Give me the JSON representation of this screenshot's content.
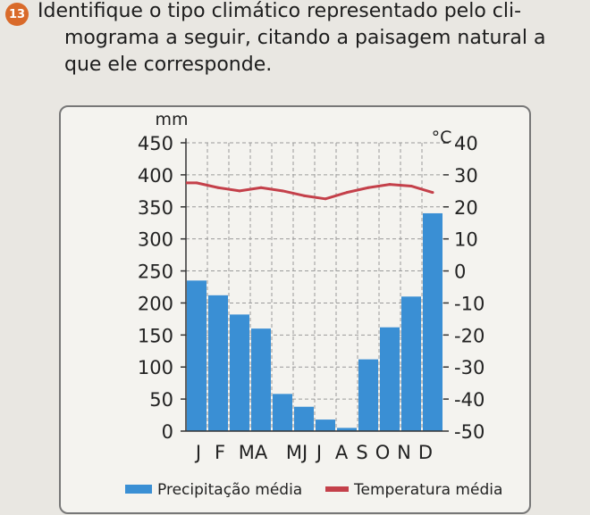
{
  "question": {
    "number": "13",
    "lines": [
      "Identifique o tipo climático representado pelo cli-",
      "mograma a seguir, citando a paisagem natural a",
      "que ele corresponde."
    ]
  },
  "chart_data": {
    "type": "bar",
    "categories": [
      "J",
      "F",
      "M",
      "A",
      "M",
      "J",
      "J",
      "A",
      "S",
      "O",
      "N",
      "D"
    ],
    "x_tick_labels": [
      "J",
      "F",
      "MA",
      "MJ",
      "J",
      "A",
      "S",
      "O",
      "N",
      "D"
    ],
    "left_axis": {
      "unit": "mm",
      "ticks": [
        "450",
        "400",
        "350",
        "300",
        "250",
        "200",
        "150",
        "100",
        "50",
        "0"
      ],
      "ylim": [
        0,
        450
      ]
    },
    "right_axis": {
      "unit": "°C",
      "ticks": [
        "40",
        "30",
        "20",
        "10",
        "0",
        "-10",
        "-20",
        "-30",
        "-40",
        "-50"
      ],
      "ylim": [
        -50,
        40
      ]
    },
    "series": [
      {
        "name": "Precipitação média",
        "kind": "bar",
        "axis": "left",
        "color": "#3a8fd4",
        "values": [
          235,
          212,
          182,
          160,
          58,
          38,
          18,
          5,
          112,
          162,
          210,
          340
        ]
      },
      {
        "name": "Temperatura média",
        "kind": "line",
        "axis": "right",
        "color": "#c4404a",
        "values": [
          27.5,
          26,
          25,
          26,
          25,
          23.5,
          22.5,
          24.5,
          26,
          27,
          26.5,
          24.5
        ]
      }
    ],
    "grid": true,
    "legend": "bottom"
  },
  "colors": {
    "bar": "#3a8fd4",
    "line": "#c4404a",
    "grid": "#9a9a9a"
  }
}
